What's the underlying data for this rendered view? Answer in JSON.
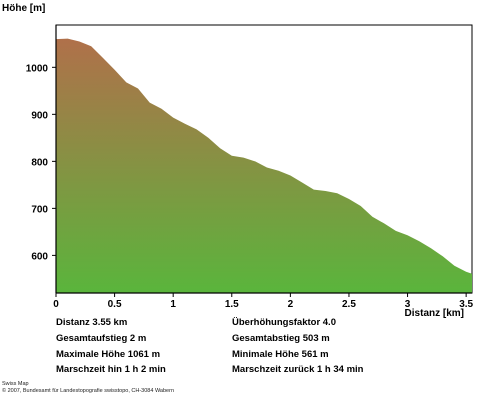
{
  "chart_data": {
    "type": "area",
    "ylabel": "Höhe [m]",
    "xlabel": "Distanz [km]",
    "xlim": [
      0,
      3.55
    ],
    "ylim": [
      520,
      1090
    ],
    "x_ticks": [
      "0",
      "0.5",
      "1",
      "1.5",
      "2",
      "2.5",
      "3",
      "3.5"
    ],
    "x_tick_values": [
      0,
      0.5,
      1,
      1.5,
      2,
      2.5,
      3,
      3.5
    ],
    "y_ticks": [
      "600",
      "700",
      "800",
      "900",
      "1000"
    ],
    "y_tick_values": [
      600,
      700,
      800,
      900,
      1000
    ],
    "grid": false,
    "fill_gradient": {
      "top": "#b0704a",
      "bottom": "#5ab53c"
    },
    "x": [
      0,
      0.1,
      0.2,
      0.3,
      0.4,
      0.5,
      0.6,
      0.7,
      0.8,
      0.9,
      1.0,
      1.1,
      1.2,
      1.3,
      1.4,
      1.5,
      1.6,
      1.7,
      1.8,
      1.9,
      2.0,
      2.1,
      2.2,
      2.3,
      2.4,
      2.5,
      2.6,
      2.7,
      2.8,
      2.9,
      3.0,
      3.1,
      3.2,
      3.3,
      3.4,
      3.5,
      3.55
    ],
    "y": [
      1060,
      1061,
      1055,
      1045,
      1020,
      995,
      968,
      955,
      925,
      912,
      893,
      880,
      868,
      850,
      828,
      812,
      808,
      800,
      787,
      780,
      770,
      755,
      740,
      737,
      732,
      720,
      705,
      682,
      668,
      652,
      643,
      630,
      615,
      598,
      578,
      565,
      561
    ]
  },
  "stats": {
    "distance": "Distanz 3.55 km",
    "ascent": "Gesamtaufstieg  2 m",
    "max_height": "Maximale Höhe  1061 m",
    "time_there": "Marschzeit hin  1 h 2 min",
    "exaggeration": "Überhöhungsfaktor 4.0",
    "descent": "Gesamtabstieg  503 m",
    "min_height": "Minimale Höhe  561 m",
    "time_back": "Marschzeit zurück  1 h 34 min"
  },
  "footer": {
    "line1": "Swiss Map",
    "line2": "© 2007, Bundesamt für Landestopografie swisstopo, CH-3084 Wabern"
  }
}
